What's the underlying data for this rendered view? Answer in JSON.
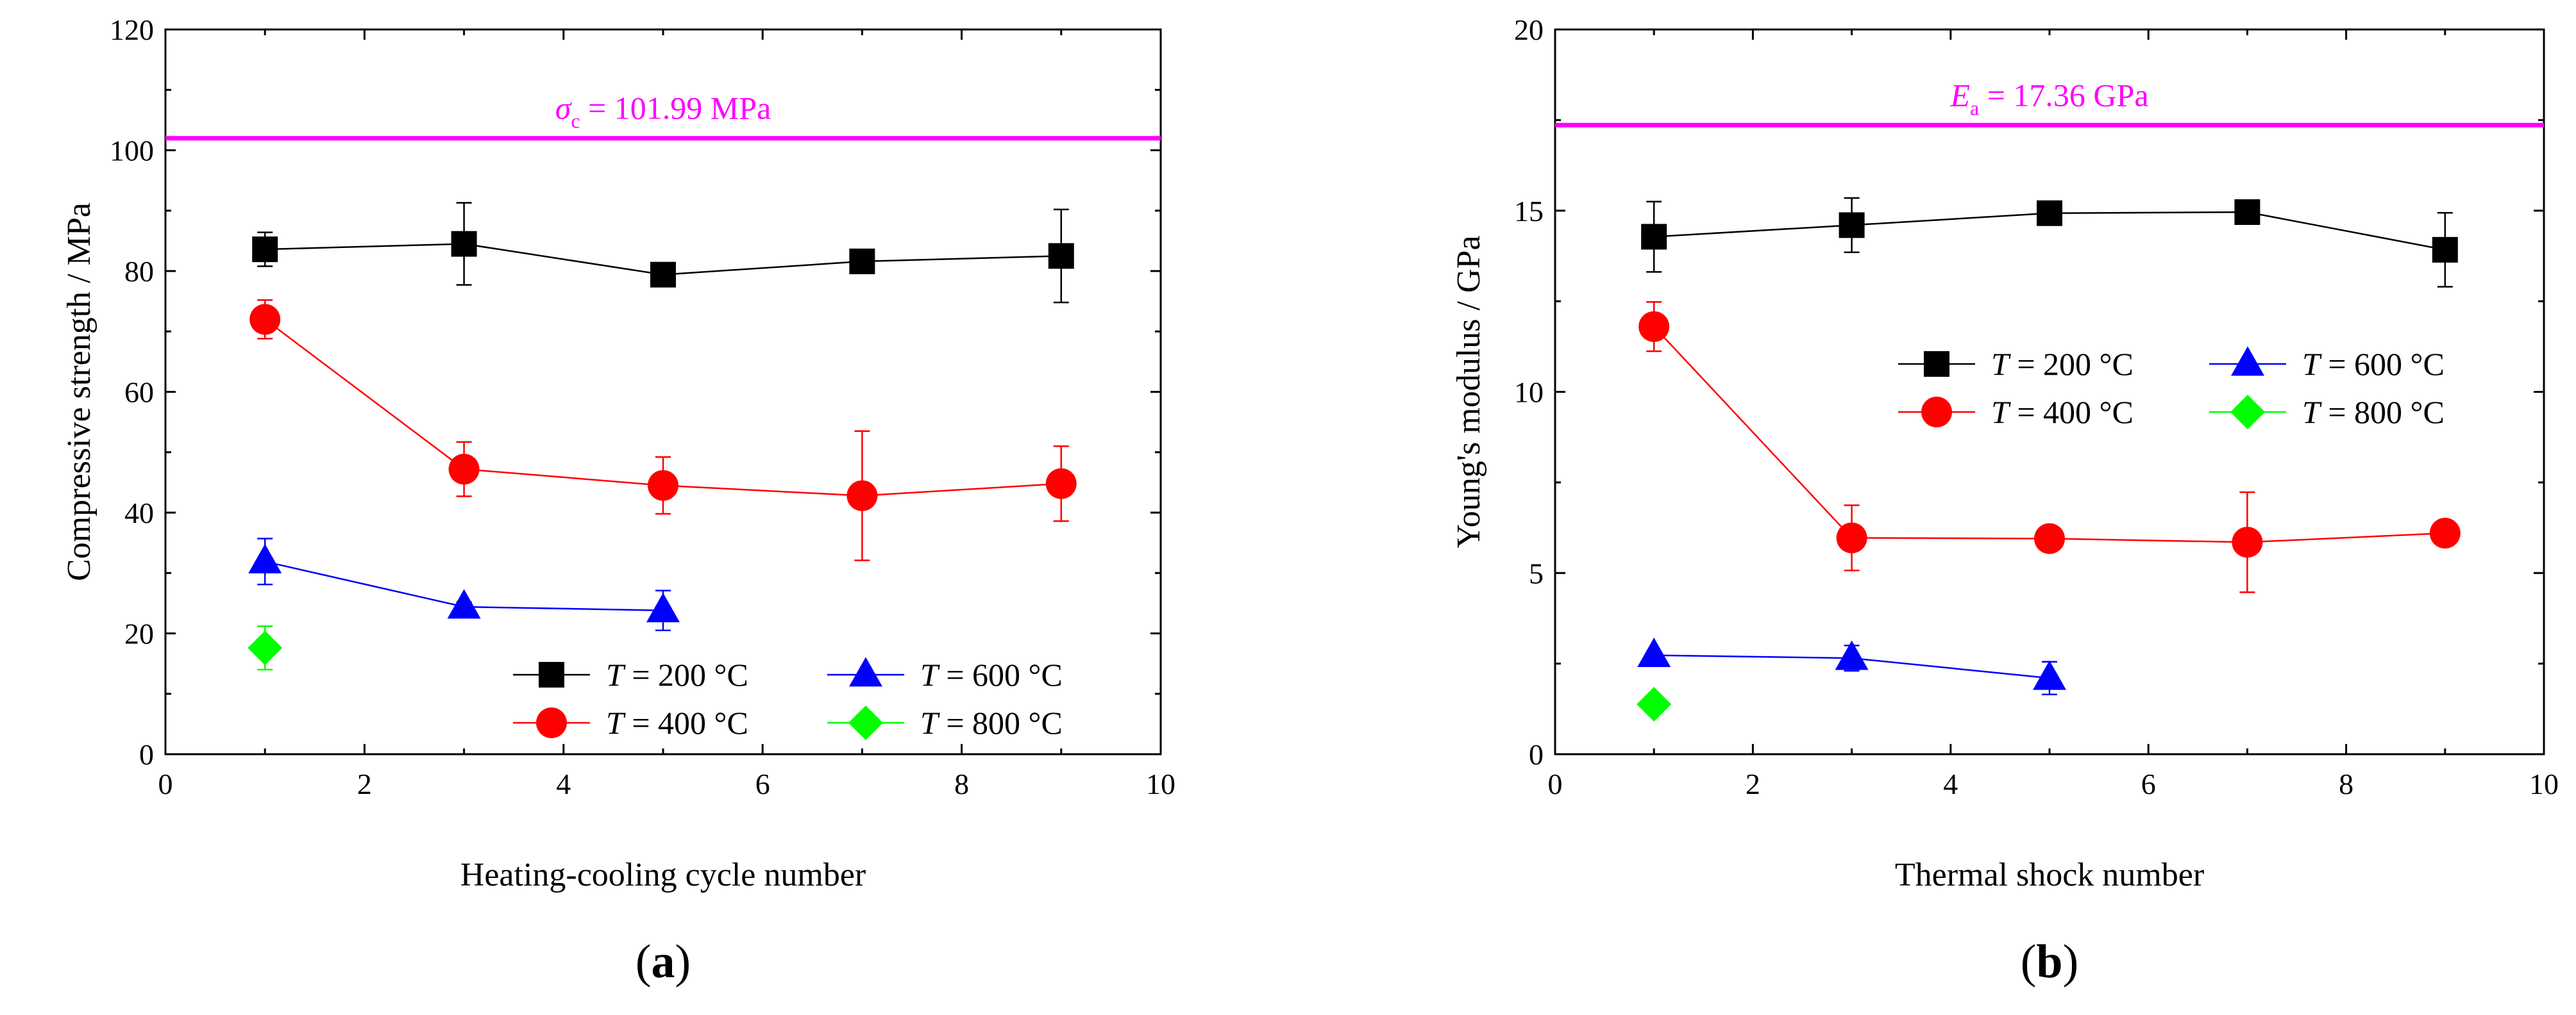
{
  "chart_data": [
    {
      "type": "scatter",
      "panel_label": "a",
      "xlabel": "Heating-cooling cycle number",
      "ylabel": "Compressive strength / MPa",
      "xlim": [
        0,
        10
      ],
      "ylim": [
        0,
        120
      ],
      "xticks": [
        0,
        2,
        4,
        6,
        8,
        10
      ],
      "yticks": [
        0,
        20,
        40,
        60,
        80,
        100,
        120
      ],
      "reference_line": {
        "symbol": "σ",
        "subscript": "c",
        "text": " = 101.99 MPa",
        "value": 101.99,
        "color": "#ff00ff"
      },
      "legend_position": "bottom-right",
      "series": [
        {
          "name": "= 200 °C",
          "var": "T",
          "color": "#000000",
          "marker": "square",
          "x": [
            1,
            3,
            5,
            7,
            9
          ],
          "y": [
            83.6,
            84.5,
            79.4,
            81.6,
            82.5
          ],
          "err": [
            2.8,
            6.8,
            1.6,
            1.8,
            7.7
          ]
        },
        {
          "name": "= 400 °C",
          "var": "T",
          "color": "#ff0000",
          "marker": "circle",
          "x": [
            1,
            3,
            5,
            7,
            9
          ],
          "y": [
            72.0,
            47.2,
            44.5,
            42.8,
            44.8
          ],
          "err": [
            3.2,
            4.5,
            4.7,
            10.7,
            6.2
          ]
        },
        {
          "name": "= 600 °C",
          "var": "T",
          "color": "#0000ff",
          "marker": "triangle",
          "x": [
            1,
            3,
            5
          ],
          "y": [
            31.9,
            24.4,
            23.8
          ],
          "err": [
            3.8,
            0.8,
            3.3
          ]
        },
        {
          "name": "= 800 °C",
          "var": "T",
          "color": "#00ff00",
          "marker": "diamond",
          "x": [
            1
          ],
          "y": [
            17.6
          ],
          "err": [
            3.6
          ]
        }
      ]
    },
    {
      "type": "scatter",
      "panel_label": "b",
      "xlabel": "Thermal shock number",
      "ylabel": "Young's modulus / GPa",
      "xlim": [
        0,
        10
      ],
      "ylim": [
        0,
        20
      ],
      "xticks": [
        0,
        2,
        4,
        6,
        8,
        10
      ],
      "yticks": [
        0,
        5,
        10,
        15,
        20
      ],
      "reference_line": {
        "symbol": "E",
        "subscript": "a",
        "text": " = 17.36 GPa",
        "value": 17.36,
        "color": "#ff00ff"
      },
      "legend_position": "top-right",
      "series": [
        {
          "name": "= 200 °C",
          "var": "T",
          "color": "#000000",
          "marker": "square",
          "x": [
            1,
            3,
            5,
            7,
            9
          ],
          "y": [
            14.28,
            14.6,
            14.93,
            14.96,
            13.92
          ],
          "err": [
            0.97,
            0.75,
            0.1,
            0.1,
            1.02
          ]
        },
        {
          "name": "= 400 °C",
          "var": "T",
          "color": "#ff0000",
          "marker": "circle",
          "x": [
            1,
            3,
            5,
            7,
            9
          ],
          "y": [
            11.8,
            5.97,
            5.95,
            5.85,
            6.1
          ],
          "err": [
            0.68,
            0.9,
            0.1,
            1.38,
            0.1
          ]
        },
        {
          "name": "= 600 °C",
          "var": "T",
          "color": "#0000ff",
          "marker": "triangle",
          "x": [
            1,
            3,
            5
          ],
          "y": [
            2.73,
            2.65,
            2.1
          ],
          "err": [
            0.1,
            0.35,
            0.45
          ]
        },
        {
          "name": "= 800 °C",
          "var": "T",
          "color": "#00ff00",
          "marker": "diamond",
          "x": [
            1
          ],
          "y": [
            1.38
          ],
          "err": [
            0
          ]
        }
      ]
    }
  ]
}
